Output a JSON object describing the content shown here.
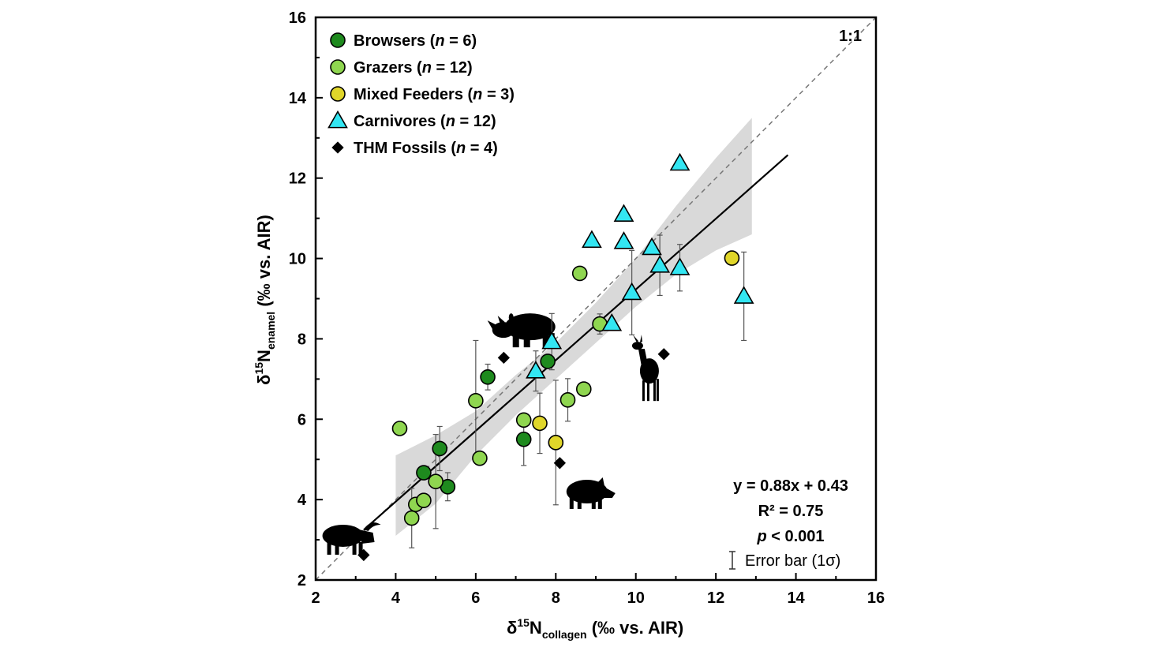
{
  "chart_data": {
    "type": "scatter",
    "xlabel": {
      "symbol": "δ",
      "sup": "15",
      "element": "N",
      "sub": "collagen",
      "unit": " (‰ vs. AIR)"
    },
    "ylabel": {
      "symbol": "δ",
      "sup": "15",
      "element": "N",
      "sub": "enamel",
      "unit": " (‰ vs. AIR)"
    },
    "xlim": [
      2,
      16
    ],
    "ylim": [
      2,
      16
    ],
    "xticks": [
      "2",
      "4",
      "6",
      "8",
      "10",
      "12",
      "14",
      "16"
    ],
    "yticks": [
      "2",
      "4",
      "6",
      "8",
      "10",
      "12",
      "14",
      "16"
    ],
    "grid": false,
    "legend_position": "top-left",
    "identity_line_label": "1:1",
    "regression": {
      "slope": 0.88,
      "intercept": 0.43,
      "x_range": [
        3.2,
        13.8
      ],
      "equation": "y = 0.88x + 0.43",
      "r2": "R² = 0.75",
      "p_label": "p",
      "p_rest": " < 0.001",
      "ci_x": [
        4.0,
        5.0,
        6.0,
        7.0,
        8.0,
        9.0,
        10.0,
        11.0,
        12.0,
        12.9
      ],
      "ci_lower": [
        3.1,
        3.9,
        5.1,
        6.1,
        7.0,
        7.9,
        8.8,
        9.6,
        10.2,
        10.6
      ],
      "ci_upper": [
        5.1,
        5.6,
        6.2,
        7.1,
        7.9,
        8.9,
        10.0,
        11.3,
        12.5,
        13.5
      ]
    },
    "error_bar_label": "Error bar (1σ)",
    "series": [
      {
        "name": "Browsers",
        "n_label": "n",
        "n_value": "6",
        "marker": "circle",
        "color": "#1e8a1e",
        "points": [
          {
            "x": 4.7,
            "y": 4.67,
            "err": 0
          },
          {
            "x": 5.1,
            "y": 5.27,
            "err": 0.55
          },
          {
            "x": 5.3,
            "y": 4.32,
            "err": 0.35
          },
          {
            "x": 6.3,
            "y": 7.05,
            "err": 0.32
          },
          {
            "x": 7.2,
            "y": 5.5,
            "err": 0.65
          },
          {
            "x": 7.8,
            "y": 7.44,
            "err": 0
          }
        ]
      },
      {
        "name": "Grazers",
        "n_label": "n",
        "n_value": "12",
        "marker": "circle",
        "color": "#8fd650",
        "points": [
          {
            "x": 4.1,
            "y": 5.77,
            "err": 0
          },
          {
            "x": 4.4,
            "y": 3.54,
            "err": 0.74
          },
          {
            "x": 4.5,
            "y": 3.88,
            "err": 0
          },
          {
            "x": 4.7,
            "y": 3.98,
            "err": 0
          },
          {
            "x": 5.0,
            "y": 4.45,
            "err": 1.17
          },
          {
            "x": 6.0,
            "y": 6.46,
            "err": 1.5
          },
          {
            "x": 6.1,
            "y": 5.03,
            "err": 0
          },
          {
            "x": 7.2,
            "y": 5.98,
            "err": 0
          },
          {
            "x": 8.3,
            "y": 6.48,
            "err": 0.53
          },
          {
            "x": 8.7,
            "y": 6.75,
            "err": 0
          },
          {
            "x": 8.6,
            "y": 9.63,
            "err": 0
          },
          {
            "x": 9.1,
            "y": 8.37,
            "err": 0.25
          }
        ]
      },
      {
        "name": "Mixed Feeders",
        "n_label": "n",
        "n_value": "3",
        "marker": "circle",
        "color": "#e0d62a",
        "points": [
          {
            "x": 7.6,
            "y": 5.9,
            "err": 0.75
          },
          {
            "x": 8.0,
            "y": 5.42,
            "err": 1.55
          },
          {
            "x": 12.4,
            "y": 10.01,
            "err": 0
          }
        ]
      },
      {
        "name": "Carnivores",
        "n_label": "n",
        "n_value": "12",
        "marker": "triangle",
        "color": "#33e6f2",
        "points": [
          {
            "x": 7.5,
            "y": 7.2,
            "err": 0.5
          },
          {
            "x": 7.9,
            "y": 7.93,
            "err": 0.7
          },
          {
            "x": 8.9,
            "y": 10.45,
            "err": 0
          },
          {
            "x": 9.4,
            "y": 8.38,
            "err": 0
          },
          {
            "x": 9.7,
            "y": 11.1,
            "err": 0
          },
          {
            "x": 9.7,
            "y": 10.42,
            "err": 0
          },
          {
            "x": 9.9,
            "y": 9.15,
            "err": 1.05
          },
          {
            "x": 10.4,
            "y": 10.27,
            "err": 0
          },
          {
            "x": 10.6,
            "y": 9.83,
            "err": 0.75
          },
          {
            "x": 11.1,
            "y": 12.37,
            "err": 0
          },
          {
            "x": 11.1,
            "y": 9.77,
            "err": 0.58
          },
          {
            "x": 12.7,
            "y": 9.06,
            "err": 1.1
          }
        ]
      },
      {
        "name": "THM Fossils",
        "n_label": "n",
        "n_value": "4",
        "marker": "diamond",
        "color": "#000000",
        "points": [
          {
            "x": 3.2,
            "y": 2.62,
            "err": 0
          },
          {
            "x": 6.7,
            "y": 7.53,
            "err": 0
          },
          {
            "x": 8.1,
            "y": 4.91,
            "err": 0
          },
          {
            "x": 10.7,
            "y": 7.62,
            "err": 0
          }
        ]
      }
    ],
    "silhouettes": [
      {
        "name": "rhinoceros",
        "x": 7.2,
        "y": 8.3
      },
      {
        "name": "deer",
        "x": 10.3,
        "y": 7.2
      },
      {
        "name": "boar",
        "x": 8.7,
        "y": 4.2
      },
      {
        "name": "water-buffalo",
        "x": 2.8,
        "y": 3.1
      }
    ]
  }
}
